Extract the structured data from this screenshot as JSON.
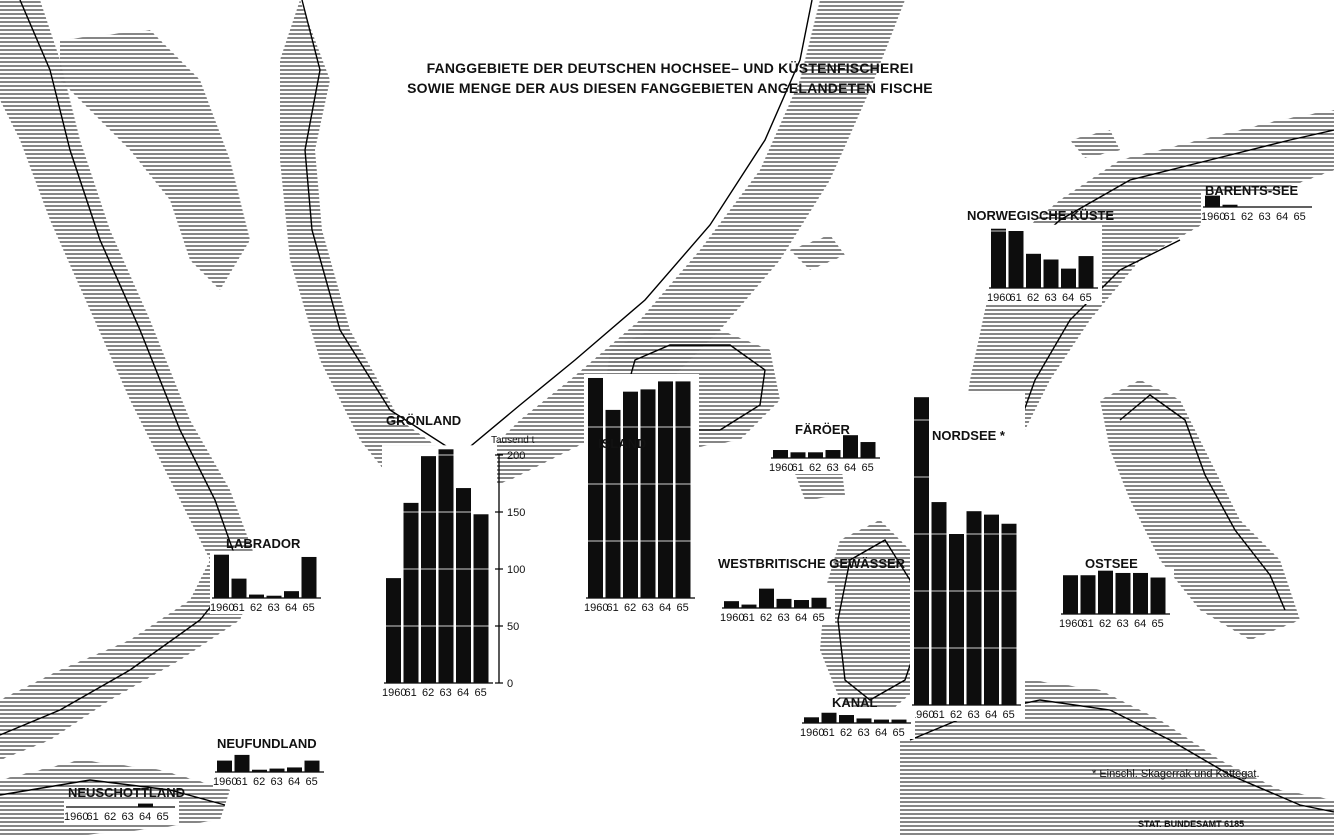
{
  "title_line1": "FANGGEBIETE DER DEUTSCHEN HOCHSEE– UND KÜSTENFISCHEREI",
  "title_line2": "SOWIE MENGE DER AUS DIESEN FANGGEBIETEN ANGELANDETEN FISCHE",
  "footnote": "* Einschl. Skagerrak und Kattegat.",
  "credit": "STAT. BUNDESAMT 6185",
  "chart_data": {
    "type": "bar",
    "categories": [
      "1960",
      "61",
      "62",
      "63",
      "64",
      "65"
    ],
    "yunit": "Tausend t",
    "ylim": [
      0,
      200
    ],
    "yticks": [
      "0",
      "50",
      "100",
      "150",
      "200"
    ],
    "grid": false,
    "regions": [
      {
        "name": "GRÖNLAND",
        "values": [
          92,
          158,
          199,
          205,
          171,
          148
        ]
      },
      {
        "name": "ISLAND",
        "values": [
          193,
          165,
          181,
          183,
          190,
          190
        ]
      },
      {
        "name": "NORDSEE *",
        "values": [
          270,
          178,
          150,
          170,
          167,
          159
        ]
      },
      {
        "name": "LABRADOR",
        "values": [
          38,
          17,
          3,
          2,
          6,
          36
        ]
      },
      {
        "name": "NEUFUNDLAND",
        "values": [
          10,
          15,
          2,
          3,
          4,
          10
        ]
      },
      {
        "name": "NEUSCHOTTLAND",
        "values": [
          0,
          0,
          0,
          0,
          3,
          0
        ]
      },
      {
        "name": "NORWEGISCHE KÜSTE",
        "values": [
          52,
          50,
          30,
          25,
          17,
          28
        ]
      },
      {
        "name": "BARENTS-SEE",
        "values": [
          10,
          2,
          0,
          0,
          0,
          0
        ]
      },
      {
        "name": "FÄRÖER",
        "values": [
          7,
          5,
          5,
          7,
          20,
          14
        ]
      },
      {
        "name": "WESTBRITISCHE GEWÄSSER",
        "values": [
          6,
          3,
          17,
          8,
          7,
          9
        ]
      },
      {
        "name": "OSTSEE",
        "values": [
          34,
          34,
          38,
          36,
          36,
          32
        ]
      },
      {
        "name": "KANAL",
        "values": [
          5,
          9,
          7,
          4,
          3,
          3
        ]
      }
    ]
  }
}
